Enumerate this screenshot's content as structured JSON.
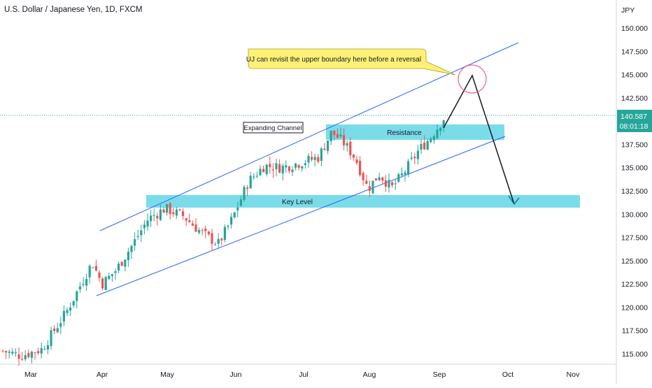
{
  "header": {
    "title": "U.S. Dollar / Japanese Yen, 1D, FXCM"
  },
  "price_axis": {
    "currency": "JPY",
    "ticks": [
      "150.000",
      "147.500",
      "145.000",
      "142.500",
      "140.000",
      "137.500",
      "135.000",
      "132.500",
      "130.000",
      "127.500",
      "125.000",
      "122.500",
      "120.000",
      "117.500",
      "115.000"
    ],
    "last_price": "140.587",
    "countdown": "08:01:18"
  },
  "time_axis": {
    "ticks": [
      "Mar",
      "Apr",
      "May",
      "Jun",
      "Jul",
      "Aug",
      "Sep",
      "Oct",
      "Nov"
    ]
  },
  "annotations": {
    "callout": "UJ can revisit the upper boundary here before a reversal",
    "channel_label": "Expanding Channel",
    "resistance_label": "Resistance",
    "key_level_label": "Key Level"
  },
  "colors": {
    "bull": "#26a69a",
    "bear": "#ef5350",
    "channel_line": "#2962ff",
    "zone_fill": "#4dd0e1",
    "callout_fill": "#fff176",
    "circle": "#f06292",
    "last_price_bg": "#26a69a"
  },
  "chart_data": {
    "type": "candlestick",
    "symbol": "USDJPY",
    "timeframe": "1D",
    "y_range": [
      113.8,
      151.5
    ],
    "ylabel": "JPY",
    "close_by_month": {
      "Mar_start": 115.0,
      "Mar_mid": 115.5,
      "Apr_start": 122.5,
      "Apr_mid": 124.0,
      "May_start": 129.8,
      "May_mid": 128.5,
      "Jun_start": 130.0,
      "Jun_mid": 134.5,
      "Jul_start": 135.8,
      "Jul_mid": 138.5,
      "Aug_start": 133.5,
      "Aug_mid": 134.0,
      "Sep_start": 140.2,
      "last": 140.587
    },
    "zones": [
      {
        "name": "Key Level",
        "from": 130.8,
        "to": 132.1
      },
      {
        "name": "Resistance",
        "from": 137.8,
        "to": 139.6
      }
    ],
    "projection": {
      "peak": 145.0,
      "target": 131.4
    }
  }
}
